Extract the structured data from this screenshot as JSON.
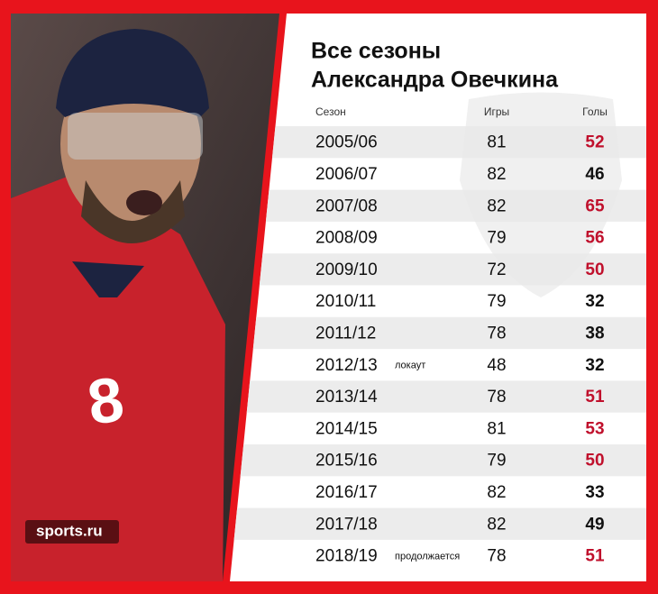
{
  "title_lines": [
    "Все сезоны",
    "Александра Овечкина"
  ],
  "header": {
    "season": "Сезон",
    "games": "Игры",
    "goals": "Голы"
  },
  "rows": [
    {
      "season": "2005/06",
      "games": 81,
      "goals": 52,
      "goals_color": "#c0102c"
    },
    {
      "season": "2006/07",
      "games": 82,
      "goals": 46,
      "goals_color": "#111111"
    },
    {
      "season": "2007/08",
      "games": 82,
      "goals": 65,
      "goals_color": "#c0102c"
    },
    {
      "season": "2008/09",
      "games": 79,
      "goals": 56,
      "goals_color": "#c0102c"
    },
    {
      "season": "2009/10",
      "games": 72,
      "goals": 50,
      "goals_color": "#c0102c"
    },
    {
      "season": "2010/11",
      "games": 79,
      "goals": 32,
      "goals_color": "#111111"
    },
    {
      "season": "2011/12",
      "games": 78,
      "goals": 38,
      "goals_color": "#111111"
    },
    {
      "season": "2012/13",
      "note": "локаут",
      "games": 48,
      "goals": 32,
      "goals_color": "#111111"
    },
    {
      "season": "2013/14",
      "games": 78,
      "goals": 51,
      "goals_color": "#c0102c"
    },
    {
      "season": "2014/15",
      "games": 81,
      "goals": 53,
      "goals_color": "#c0102c"
    },
    {
      "season": "2015/16",
      "games": 79,
      "goals": 50,
      "goals_color": "#c0102c"
    },
    {
      "season": "2016/17",
      "games": 82,
      "goals": 33,
      "goals_color": "#111111"
    },
    {
      "season": "2017/18",
      "games": 82,
      "goals": 49,
      "goals_color": "#111111"
    },
    {
      "season": "2018/19",
      "note": "продолжается",
      "games": 78,
      "goals": 51,
      "goals_color": "#c0102c"
    }
  ],
  "watermark": "sports.ru"
}
